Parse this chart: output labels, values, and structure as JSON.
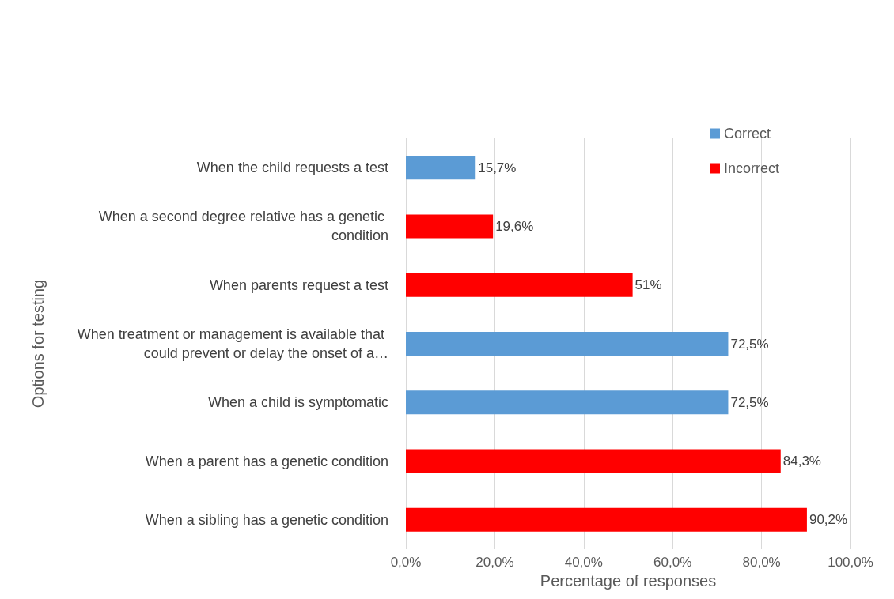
{
  "chart_data": {
    "type": "bar",
    "orientation": "horizontal",
    "stacked": true,
    "xlabel": "Percentage of responses",
    "ylabel": "Options for testing",
    "categories": [
      "When the child requests a test",
      "When a second degree relative has a genetic condition",
      "When parents request a test",
      "When treatment or management is available that could prevent or delay the onset of a…",
      "When a child is symptomatic",
      "When a parent has a genetic condition",
      "When a sibling has a genetic condition"
    ],
    "series": [
      {
        "name": "Correct",
        "color": "#5b9bd5",
        "values": [
          15.7,
          null,
          null,
          72.5,
          72.5,
          null,
          null
        ],
        "value_labels": [
          "15,7%",
          null,
          null,
          "72,5%",
          "72,5%",
          null,
          null
        ]
      },
      {
        "name": "Incorrect",
        "color": "#ff0000",
        "values": [
          null,
          19.6,
          51,
          null,
          null,
          84.3,
          90.2
        ],
        "value_labels": [
          null,
          "19,6%",
          "51%",
          null,
          null,
          "84,3%",
          "90,2%"
        ]
      }
    ],
    "xlim": [
      0,
      100
    ],
    "xticks": [
      {
        "value": 0,
        "label": "0,0%"
      },
      {
        "value": 20,
        "label": "20,0%"
      },
      {
        "value": 40,
        "label": "40,0%"
      },
      {
        "value": 60,
        "label": "60,0%"
      },
      {
        "value": 80,
        "label": "80,0%"
      },
      {
        "value": 100,
        "label": "100,0%"
      }
    ],
    "grid": "x",
    "legend": "top right"
  }
}
